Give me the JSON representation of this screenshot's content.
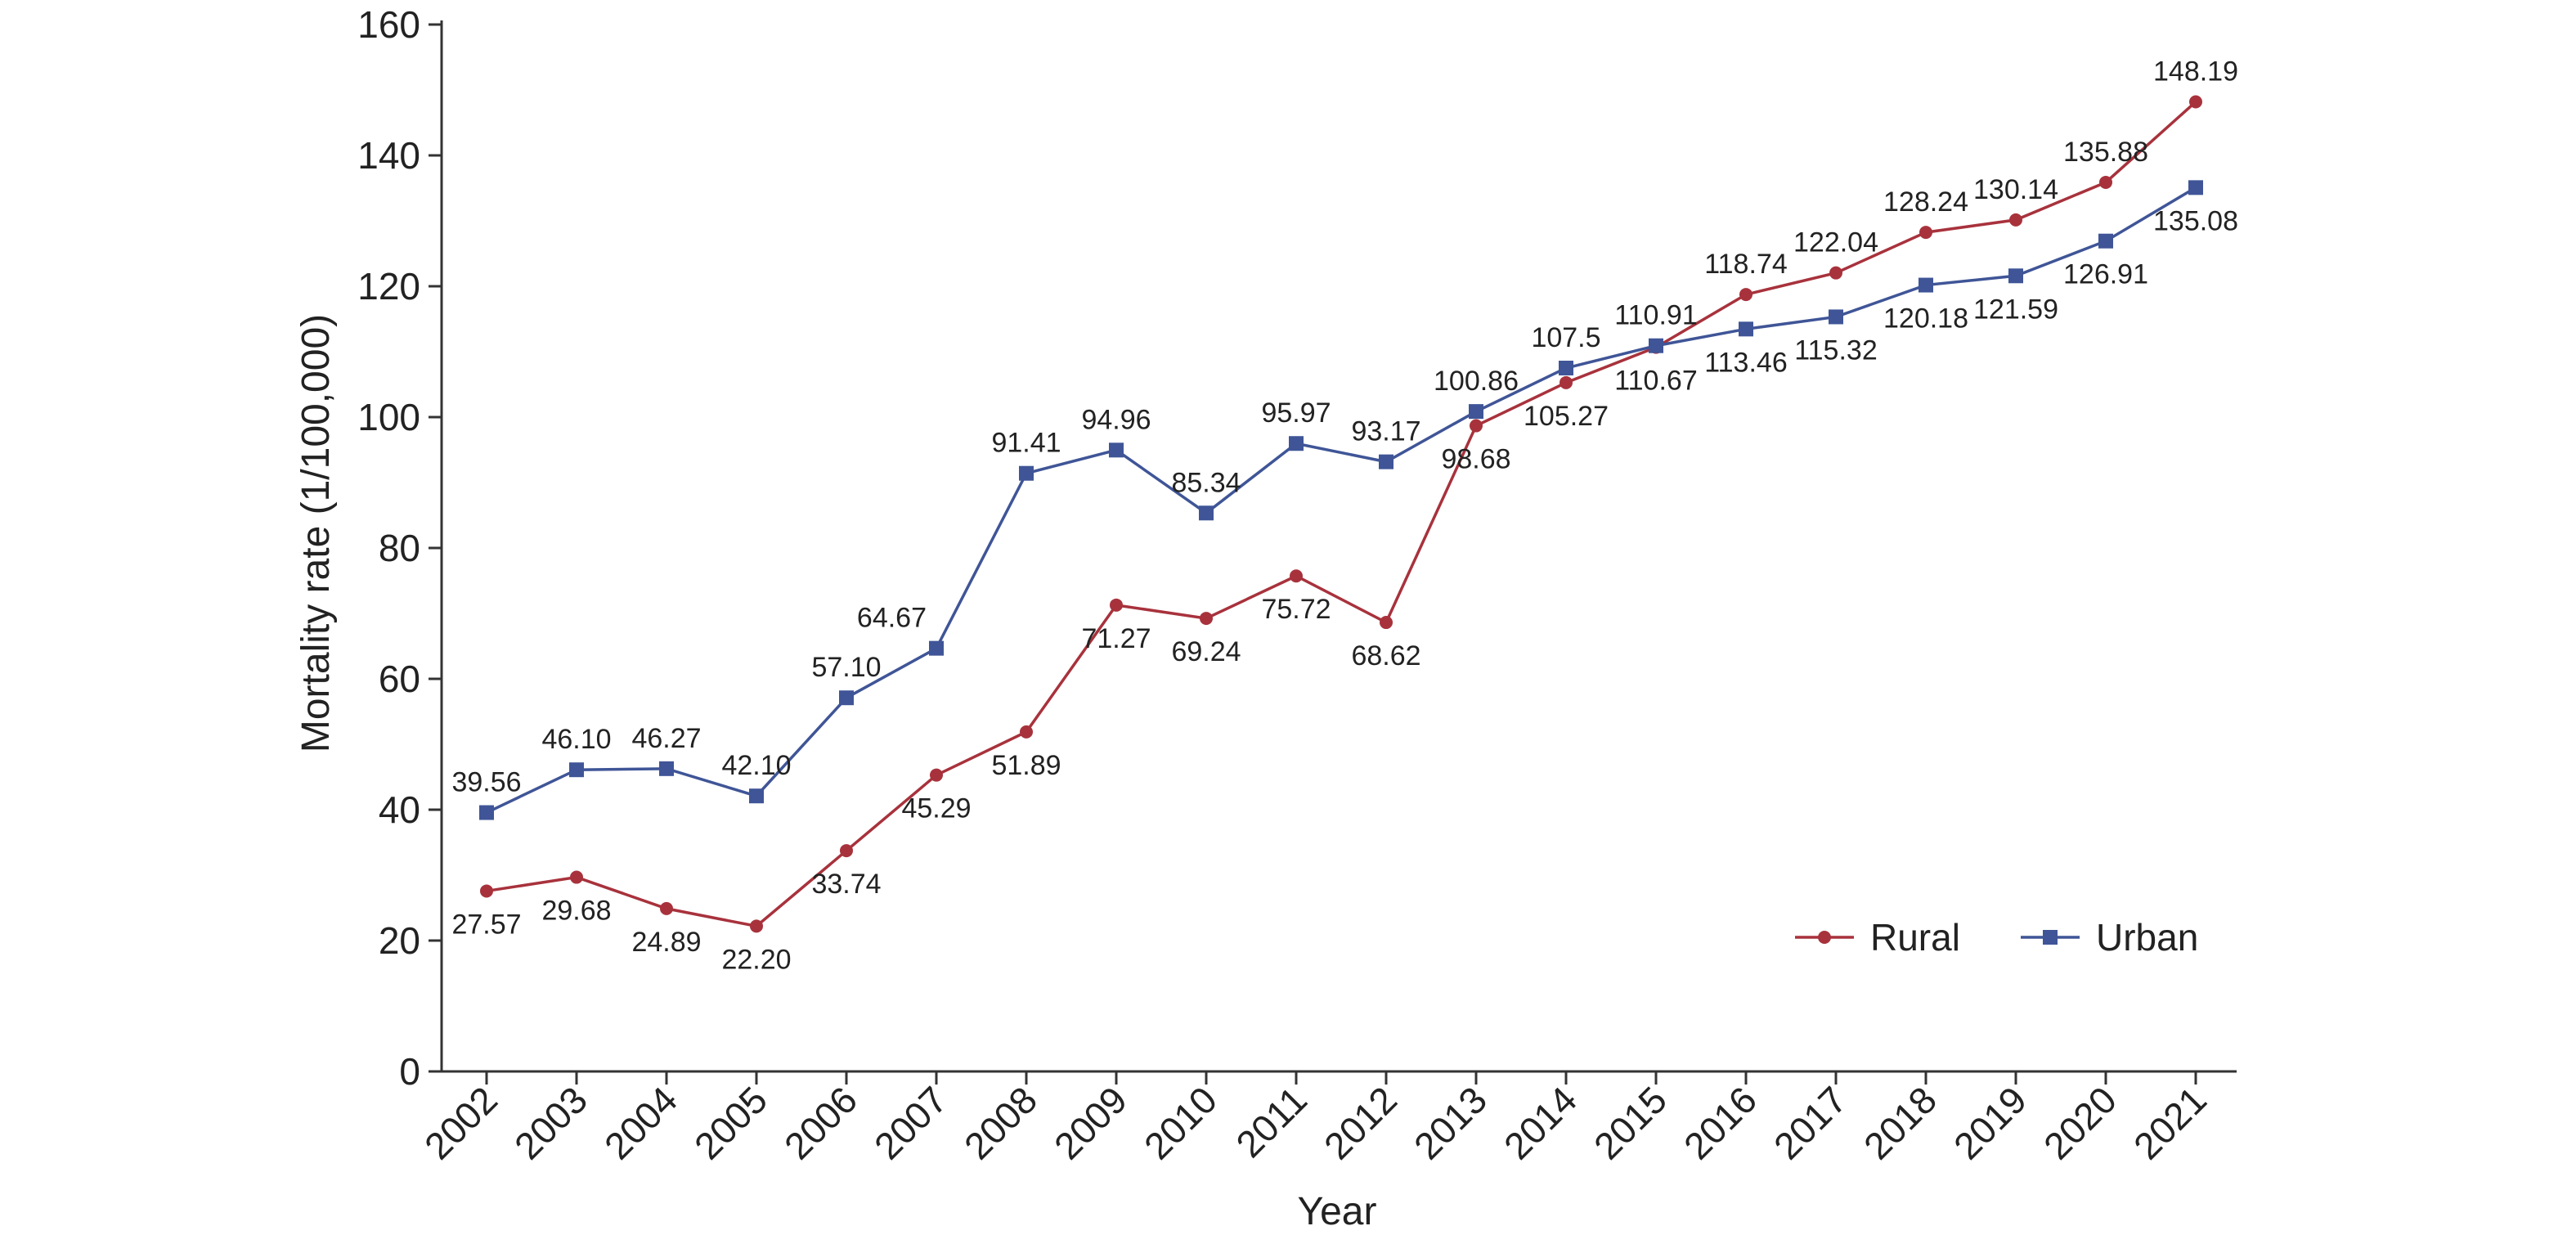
{
  "chart_data": {
    "type": "line",
    "title": "",
    "xlabel": "Year",
    "ylabel": "Mortality rate (1/100,000)",
    "ylim": [
      0,
      160
    ],
    "yticks": [
      0,
      20,
      40,
      60,
      80,
      100,
      120,
      140,
      160
    ],
    "categories": [
      "2002",
      "2003",
      "2004",
      "2005",
      "2006",
      "2007",
      "2008",
      "2009",
      "2010",
      "2011",
      "2012",
      "2013",
      "2014",
      "2015",
      "2016",
      "2017",
      "2018",
      "2019",
      "2020",
      "2021"
    ],
    "legend_position": "bottom-right",
    "grid": false,
    "series": [
      {
        "name": "Rural",
        "color": "#a8323c",
        "marker": "circle",
        "values": [
          27.57,
          29.68,
          24.89,
          22.2,
          33.74,
          45.29,
          51.89,
          71.27,
          69.24,
          75.72,
          68.62,
          98.68,
          105.27,
          110.67,
          118.74,
          122.04,
          128.24,
          130.14,
          135.88,
          148.19
        ],
        "labels": [
          "27.57",
          "29.68",
          "24.89",
          "22.20",
          "33.74",
          "45.29",
          "51.89",
          "71.27",
          "69.24",
          "75.72",
          "68.62",
          "98.68",
          "105.27",
          "110.67",
          "118.74",
          "122.04",
          "128.24",
          "130.14",
          "135.88",
          "148.19"
        ],
        "label_pos": [
          "below",
          "below",
          "below",
          "below",
          "below",
          "below",
          "below",
          "below",
          "below",
          "below",
          "below",
          "below",
          "below",
          "below",
          "above",
          "above",
          "above",
          "above",
          "above",
          "above"
        ]
      },
      {
        "name": "Urban",
        "color": "#3f5597",
        "marker": "square",
        "values": [
          39.56,
          46.1,
          46.27,
          42.1,
          57.1,
          64.67,
          91.41,
          94.96,
          85.34,
          95.97,
          93.17,
          100.86,
          107.5,
          110.91,
          113.46,
          115.32,
          120.18,
          121.59,
          126.91,
          135.08
        ],
        "labels": [
          "39.56",
          "46.10",
          "46.27",
          "42.10",
          "57.10",
          "64.67",
          "91.41",
          "94.96",
          "85.34",
          "95.97",
          "93.17",
          "100.86",
          "107.5",
          "110.91",
          "113.46",
          "115.32",
          "120.18",
          "121.59",
          "126.91",
          "135.08"
        ],
        "label_pos": [
          "above",
          "above",
          "above",
          "above",
          "above",
          "above-left",
          "above",
          "above",
          "above",
          "above",
          "above",
          "above",
          "above",
          "above",
          "below",
          "below",
          "below",
          "below",
          "below",
          "below"
        ]
      }
    ]
  }
}
